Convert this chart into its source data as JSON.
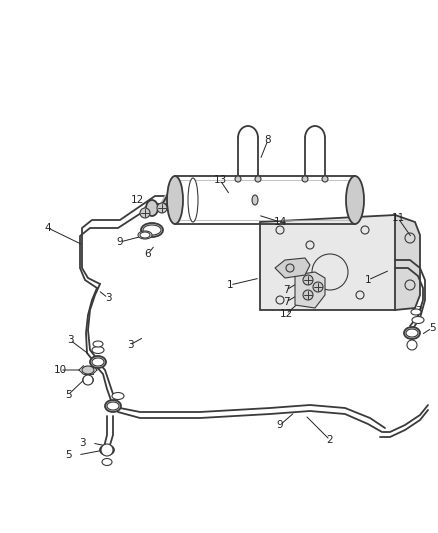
{
  "bg_color": "#ffffff",
  "lc": "#3a3a3a",
  "lc_light": "#666666",
  "figsize": [
    4.38,
    5.33
  ],
  "dpi": 100,
  "lw": 1.3,
  "lw_thin": 0.8,
  "lw_thick": 2.0,
  "gray_fill": "#cccccc",
  "plate_fill": "#e8e8e8",
  "label_fs": 7.5,
  "label_color": "#222222"
}
